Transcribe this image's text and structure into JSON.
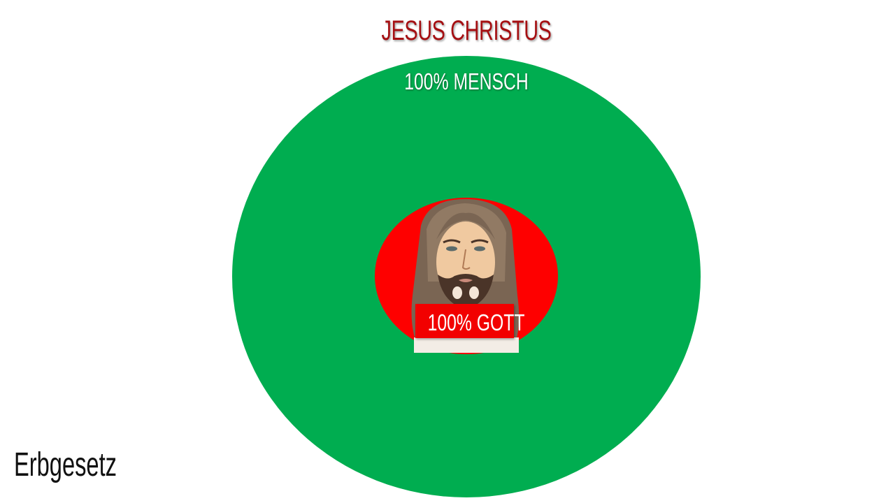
{
  "title": "JESUS CHRISTUS",
  "outer_circle": {
    "label": "100% MENSCH",
    "color": "#00ad50"
  },
  "inner_circle": {
    "label": "100% GOTT",
    "color": "#fe0000",
    "image": "watercolor-jesus-portrait"
  },
  "footer_label": "Erbgesetz",
  "colors": {
    "title": "#a50f12",
    "label_text": "#ffffff"
  }
}
